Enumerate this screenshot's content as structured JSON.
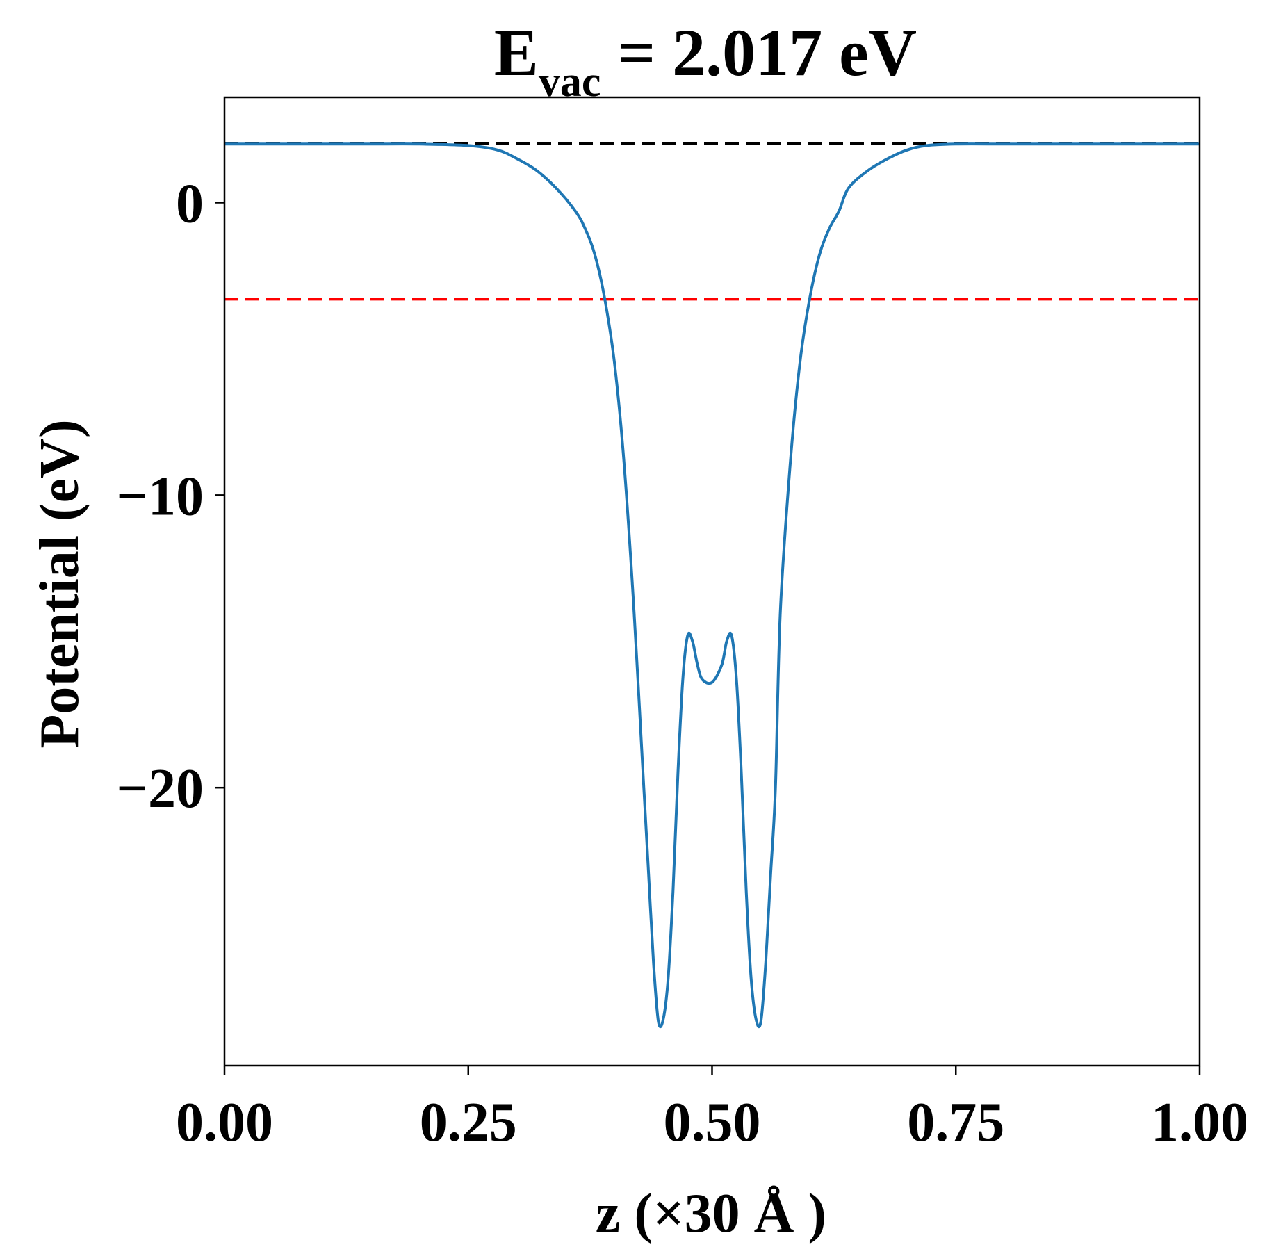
{
  "chart_data": {
    "type": "line",
    "title": {
      "main": "E",
      "subscript": "vac",
      "rest": " = 2.017 eV"
    },
    "xlabel": "z (×30 Å )",
    "ylabel": "Potential (eV)",
    "xlim": [
      0,
      1
    ],
    "ylim": [
      -29.5,
      3.6
    ],
    "xticks": [
      {
        "value": 0.0,
        "label": "0.00"
      },
      {
        "value": 0.25,
        "label": "0.25"
      },
      {
        "value": 0.5,
        "label": "0.50"
      },
      {
        "value": 0.75,
        "label": "0.75"
      },
      {
        "value": 1.0,
        "label": "1.00"
      }
    ],
    "yticks": [
      {
        "value": 0,
        "label": "0"
      },
      {
        "value": -10,
        "label": "−10"
      },
      {
        "value": -20,
        "label": "−20"
      }
    ],
    "grid": false,
    "legend": "none",
    "hlines": [
      {
        "y": 2.017,
        "color": "#000000",
        "style": "dashed"
      },
      {
        "y": -3.3,
        "color": "#ff0000",
        "style": "dashed"
      }
    ],
    "series": [
      {
        "color": "#1f77b4",
        "x": [
          0.0,
          0.05,
          0.1,
          0.15,
          0.2,
          0.25,
          0.28,
          0.3,
          0.32,
          0.34,
          0.36,
          0.37,
          0.38,
          0.39,
          0.4,
          0.41,
          0.42,
          0.43,
          0.435,
          0.44,
          0.445,
          0.45,
          0.455,
          0.46,
          0.465,
          0.47,
          0.475,
          0.48,
          0.485,
          0.49,
          0.5,
          0.51,
          0.515,
          0.52,
          0.525,
          0.53,
          0.535,
          0.54,
          0.545,
          0.55,
          0.555,
          0.56,
          0.565,
          0.57,
          0.58,
          0.59,
          0.6,
          0.61,
          0.62,
          0.63,
          0.64,
          0.66,
          0.68,
          0.7,
          0.72,
          0.75,
          0.8,
          0.85,
          0.9,
          0.95,
          1.0
        ],
        "y": [
          2.0,
          2.0,
          2.0,
          2.0,
          2.0,
          1.95,
          1.8,
          1.5,
          1.1,
          0.5,
          -0.3,
          -0.9,
          -1.8,
          -3.3,
          -5.5,
          -9.0,
          -14.0,
          -20.0,
          -23.0,
          -26.0,
          -28.0,
          -27.9,
          -26.5,
          -23.5,
          -19.5,
          -16.3,
          -14.8,
          -15.0,
          -15.8,
          -16.3,
          -16.4,
          -15.8,
          -15.0,
          -14.8,
          -16.3,
          -19.5,
          -23.5,
          -26.5,
          -27.9,
          -28.0,
          -26.0,
          -23.0,
          -20.0,
          -14.0,
          -9.0,
          -5.5,
          -3.3,
          -1.8,
          -0.9,
          -0.3,
          0.5,
          1.1,
          1.5,
          1.8,
          1.95,
          2.0,
          2.0,
          2.0,
          2.0,
          2.0,
          2.0
        ]
      }
    ]
  }
}
